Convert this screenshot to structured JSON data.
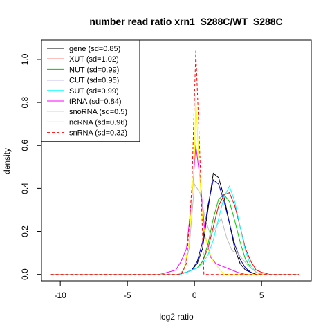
{
  "chart_data": {
    "type": "line",
    "title": "number read ratio xrn1_S288C/WT_S288C",
    "xlabel": "log2 ratio",
    "ylabel": "density",
    "xlim": [
      -11.4,
      8.7
    ],
    "ylim": [
      -0.03,
      1.09
    ],
    "x_ticks": [
      -10,
      -5,
      0,
      5
    ],
    "x_tick_labels": [
      "-10",
      "-5",
      "0",
      "5"
    ],
    "y_ticks": [
      0.0,
      0.2,
      0.4,
      0.6,
      0.8,
      1.0
    ],
    "y_tick_labels": [
      "0.0",
      "0.2",
      "0.4",
      "0.6",
      "0.8",
      "1.0"
    ],
    "grid": false,
    "legend_position": "top-left",
    "series": [
      {
        "name": "gene (sd=0.85)",
        "color": "#000000",
        "dash": "solid",
        "x": [
          -10.7,
          -1.2,
          -0.6,
          -0.2,
          0.2,
          0.6,
          1.0,
          1.4,
          1.8,
          2.2,
          2.6,
          3.0,
          3.4,
          3.8,
          4.2,
          4.6,
          5.0,
          5.6,
          7.8
        ],
        "values": [
          0,
          0,
          0.01,
          0.02,
          0.05,
          0.12,
          0.3,
          0.47,
          0.45,
          0.36,
          0.24,
          0.12,
          0.05,
          0.02,
          0.01,
          0,
          0,
          0,
          0
        ]
      },
      {
        "name": "XUT (sd=1.02)",
        "color": "#FF0000",
        "dash": "solid",
        "x": [
          -10.7,
          -1.2,
          -0.6,
          -0.2,
          0.2,
          0.6,
          1.0,
          1.4,
          1.8,
          2.2,
          2.6,
          3.0,
          3.4,
          3.8,
          4.2,
          4.6,
          5.0,
          5.6,
          7.8
        ],
        "values": [
          0,
          0,
          0.01,
          0.02,
          0.03,
          0.06,
          0.12,
          0.22,
          0.32,
          0.37,
          0.38,
          0.32,
          0.22,
          0.12,
          0.06,
          0.02,
          0.01,
          0,
          0
        ]
      },
      {
        "name": "NUT (sd=0.99)",
        "color": "#00CC00",
        "dash": "solid",
        "x": [
          -10.7,
          -1.2,
          -0.6,
          -0.2,
          0.2,
          0.6,
          1.0,
          1.4,
          1.8,
          2.2,
          2.6,
          3.0,
          3.4,
          3.8,
          4.2,
          4.6,
          5.0,
          5.6,
          7.8
        ],
        "values": [
          0,
          0,
          0.01,
          0.02,
          0.03,
          0.06,
          0.14,
          0.26,
          0.35,
          0.37,
          0.34,
          0.25,
          0.15,
          0.07,
          0.03,
          0.01,
          0,
          0,
          0
        ]
      },
      {
        "name": "CUT (sd=0.95)",
        "color": "#0000CC",
        "dash": "solid",
        "x": [
          -10.7,
          -1.2,
          -0.6,
          -0.2,
          0.2,
          0.6,
          1.0,
          1.4,
          1.8,
          2.2,
          2.6,
          3.0,
          3.4,
          3.8,
          4.2,
          4.6,
          5.0,
          5.6,
          7.8
        ],
        "values": [
          0,
          0,
          0.01,
          0.02,
          0.06,
          0.15,
          0.32,
          0.44,
          0.42,
          0.34,
          0.24,
          0.14,
          0.07,
          0.03,
          0.01,
          0,
          0,
          0,
          0
        ]
      },
      {
        "name": "SUT (sd=0.99)",
        "color": "#00FFFF",
        "dash": "solid",
        "x": [
          -10.7,
          -1.2,
          -0.6,
          -0.2,
          0.2,
          0.6,
          1.0,
          1.4,
          1.8,
          2.2,
          2.6,
          3.0,
          3.4,
          3.8,
          4.2,
          4.6,
          5.0,
          5.6,
          7.8
        ],
        "values": [
          0,
          0,
          0.01,
          0.02,
          0.03,
          0.05,
          0.09,
          0.16,
          0.26,
          0.36,
          0.41,
          0.34,
          0.22,
          0.11,
          0.04,
          0.01,
          0,
          0,
          0
        ]
      },
      {
        "name": "tRNA (sd=0.84)",
        "color": "#FF00FF",
        "dash": "solid",
        "x": [
          -10.7,
          -2.6,
          -2.0,
          -1.4,
          -1.0,
          -0.6,
          -0.2,
          0.1,
          0.4,
          0.8,
          1.2,
          1.6,
          2.0,
          2.4,
          2.8,
          3.2,
          3.8,
          4.4,
          7.8
        ],
        "values": [
          0,
          0,
          0.01,
          0.02,
          0.06,
          0.12,
          0.35,
          0.6,
          0.45,
          0.18,
          0.08,
          0.05,
          0.04,
          0.03,
          0.02,
          0.01,
          0,
          0,
          0
        ]
      },
      {
        "name": "snoRNA (sd=0.5)",
        "color": "#FFFF00",
        "dash": "solid",
        "x": [
          -10.7,
          -1.2,
          -0.8,
          -0.4,
          0,
          0.1,
          0.3,
          0.6,
          1.0,
          1.4,
          1.8,
          2.2,
          7.8
        ],
        "values": [
          0,
          0,
          0.02,
          0.15,
          0.55,
          0.83,
          0.55,
          0.25,
          0.12,
          0.06,
          0.03,
          0,
          0
        ]
      },
      {
        "name": "ncRNA (sd=0.96)",
        "color": "#BEBEBE",
        "dash": "solid",
        "x": [
          -10.7,
          -1.2,
          -0.8,
          -0.4,
          0,
          0.4,
          0.8,
          1.2,
          1.6,
          2.0,
          2.4,
          2.8,
          3.2,
          3.6,
          4.0,
          4.6,
          5.2,
          7.8
        ],
        "values": [
          0,
          0,
          0.02,
          0.12,
          0.42,
          0.38,
          0.26,
          0.18,
          0.22,
          0.26,
          0.17,
          0.11,
          0.1,
          0.07,
          0.04,
          0.01,
          0,
          0
        ]
      },
      {
        "name": "snRNA (sd=0.32)",
        "color": "#FF0000",
        "dash": "dashed",
        "x": [
          -10.7,
          -1.0,
          -0.6,
          -0.2,
          0.1,
          0.4,
          0.7,
          1.0,
          7.8
        ],
        "values": [
          0,
          0,
          0.05,
          0.4,
          1.04,
          0.55,
          0,
          0,
          0
        ]
      }
    ]
  }
}
